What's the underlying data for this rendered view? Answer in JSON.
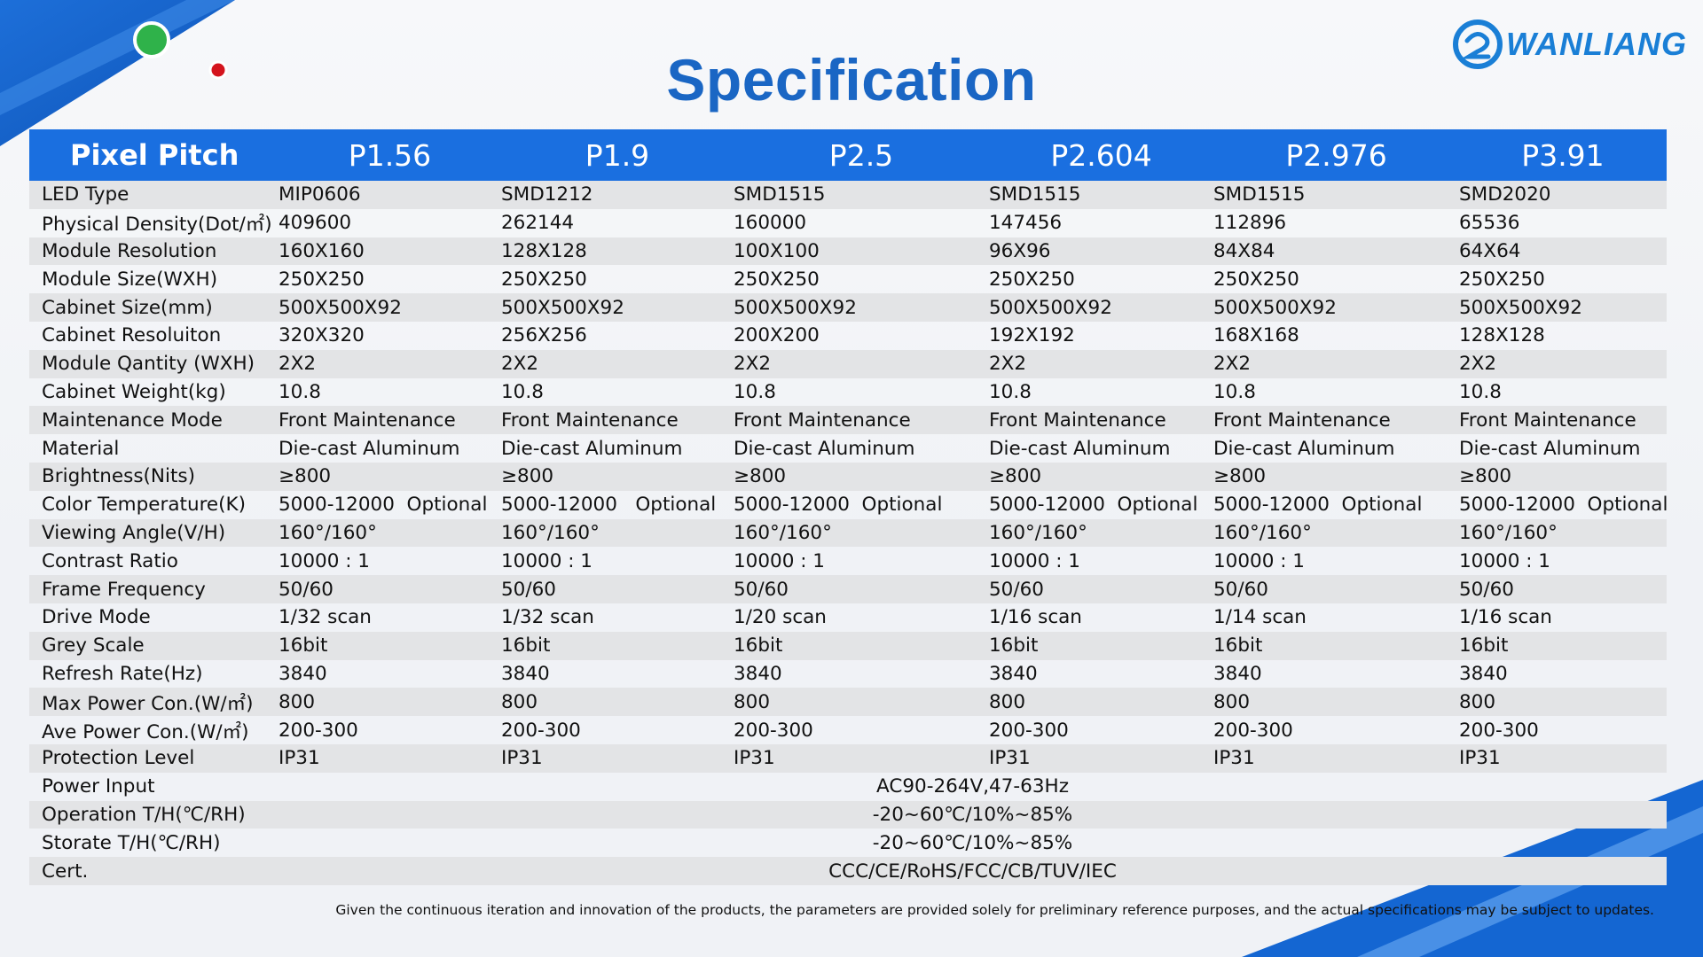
{
  "title": "Specification",
  "logo": {
    "text": "WANLIANG",
    "icon": "wanliang-logo-icon"
  },
  "colors": {
    "header_bg": "#1a6fe0",
    "title": "#1a66c4",
    "shade": "#e3e4e6"
  },
  "table": {
    "header_label": "Pixel Pitch",
    "columns": [
      "P1.56",
      "P1.9",
      "P2.5",
      "P2.604",
      "P2.976",
      "P3.91"
    ],
    "rows": [
      {
        "label": "LED Type",
        "values": [
          "MIP0606",
          "SMD1212",
          "SMD1515",
          "SMD1515",
          "SMD1515",
          "SMD2020"
        ]
      },
      {
        "label": "Physical Density(Dot/㎡)",
        "values": [
          "409600",
          "262144",
          "160000",
          "147456",
          "112896",
          "65536"
        ]
      },
      {
        "label": "Module Resolution",
        "values": [
          "160X160",
          "128X128",
          "100X100",
          "96X96",
          "84X84",
          "64X64"
        ]
      },
      {
        "label": "Module Size(WXH)",
        "values": [
          "250X250",
          "250X250",
          "250X250",
          "250X250",
          "250X250",
          "250X250"
        ]
      },
      {
        "label": "Cabinet Size(mm)",
        "values": [
          "500X500X92",
          "500X500X92",
          "500X500X92",
          "500X500X92",
          "500X500X92",
          "500X500X92"
        ]
      },
      {
        "label": "Cabinet Resoluiton",
        "values": [
          "320X320",
          "256X256",
          "200X200",
          "192X192",
          "168X168",
          "128X128"
        ]
      },
      {
        "label": "Module Qantity (WXH)",
        "values": [
          "2X2",
          "2X2",
          "2X2",
          "2X2",
          "2X2",
          "2X2"
        ]
      },
      {
        "label": "Cabinet Weight(kg)",
        "values": [
          "10.8",
          "10.8",
          "10.8",
          "10.8",
          "10.8",
          "10.8"
        ]
      },
      {
        "label": "Maintenance Mode",
        "values": [
          "Front Maintenance",
          "Front Maintenance",
          "Front Maintenance",
          "Front Maintenance",
          "Front Maintenance",
          "Front Maintenance"
        ]
      },
      {
        "label": "Material",
        "values": [
          "Die-cast Aluminum",
          "Die-cast Aluminum",
          "Die-cast Aluminum",
          "Die-cast Aluminum",
          "Die-cast Aluminum",
          "Die-cast Aluminum"
        ]
      },
      {
        "label": "Brightness(Nits)",
        "values": [
          "≥800",
          "≥800",
          "≥800",
          "≥800",
          "≥800",
          "≥800"
        ]
      },
      {
        "label": "Color Temperature(K)",
        "values": [
          "5000-12000  Optional",
          "5000-12000   Optional",
          "5000-12000  Optional",
          "5000-12000  Optional",
          "5000-12000  Optional",
          "5000-12000  Optional"
        ]
      },
      {
        "label": "Viewing Angle(V/H)",
        "values": [
          "160°/160°",
          "160°/160°",
          "160°/160°",
          "160°/160°",
          "160°/160°",
          "160°/160°"
        ]
      },
      {
        "label": "Contrast Ratio",
        "values": [
          "10000 : 1",
          "10000 : 1",
          "10000 : 1",
          "10000 : 1",
          "10000 : 1",
          "10000 : 1"
        ]
      },
      {
        "label": "Frame Frequency",
        "values": [
          "50/60",
          "50/60",
          "50/60",
          "50/60",
          "50/60",
          "50/60"
        ]
      },
      {
        "label": "Drive Mode",
        "values": [
          "1/32 scan",
          "1/32 scan",
          "1/20 scan",
          "1/16 scan",
          "1/14 scan",
          "1/16 scan"
        ]
      },
      {
        "label": "Grey Scale",
        "values": [
          "16bit",
          "16bit",
          "16bit",
          "16bit",
          "16bit",
          "16bit"
        ]
      },
      {
        "label": "Refresh Rate(Hz)",
        "values": [
          "3840",
          "3840",
          "3840",
          "3840",
          "3840",
          "3840"
        ]
      },
      {
        "label": "Max Power Con.(W/㎡)",
        "values": [
          "800",
          "800",
          "800",
          "800",
          "800",
          "800"
        ]
      },
      {
        "label": "Ave Power Con.(W/㎡)",
        "values": [
          "200-300",
          "200-300",
          "200-300",
          "200-300",
          "200-300",
          "200-300"
        ]
      },
      {
        "label": "Protection Level",
        "values": [
          "IP31",
          "IP31",
          "IP31",
          "IP31",
          "IP31",
          "IP31"
        ]
      }
    ],
    "span_rows": [
      {
        "label": "Power Input",
        "value": "AC90-264V,47-63Hz"
      },
      {
        "label": "Operation T/H(℃/RH)",
        "value": "-20~60℃/10%~85%"
      },
      {
        "label": "Storate T/H(℃/RH)",
        "value": "-20~60℃/10%~85%"
      },
      {
        "label": "Cert.",
        "value": "CCC/CE/RoHS/FCC/CB/TUV/IEC"
      }
    ]
  },
  "footnote": "Given the continuous iteration and innovation of the products, the parameters are provided solely for preliminary reference purposes, and the actual specifications may be subject to updates."
}
